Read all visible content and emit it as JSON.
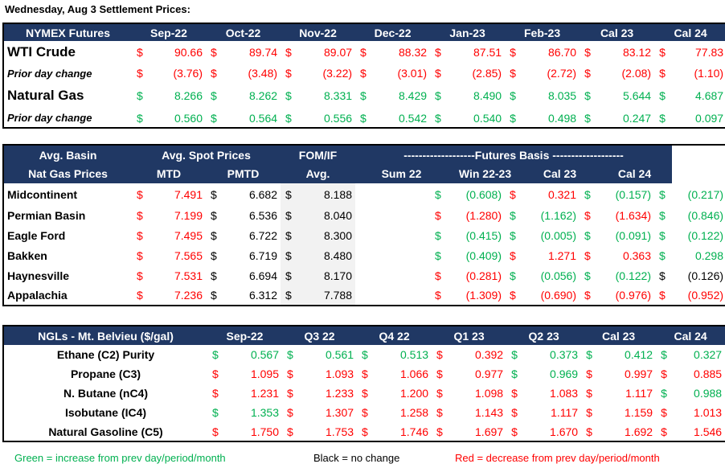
{
  "title": "Wednesday, Aug 3 Settlement Prices:",
  "futures": {
    "header": [
      "NYMEX Futures",
      "Sep-22",
      "Oct-22",
      "Nov-22",
      "Dec-22",
      "Jan-23",
      "Feb-23",
      "Cal 23",
      "Cal 24"
    ],
    "rows": [
      {
        "label": "WTI Crude",
        "style": "big",
        "color": "red",
        "cur": "$",
        "values": [
          "90.66",
          "89.74",
          "89.07",
          "88.32",
          "87.51",
          "86.70",
          "83.12",
          "77.83"
        ]
      },
      {
        "label": "Prior day change",
        "style": "ital",
        "color": "red",
        "cur": "$",
        "values": [
          "(3.76)",
          "(3.48)",
          "(3.22)",
          "(3.01)",
          "(2.85)",
          "(2.72)",
          "(2.08)",
          "(1.10)"
        ]
      },
      {
        "label": "Natural Gas",
        "style": "big",
        "color": "grn",
        "cur": "$",
        "values": [
          "8.266",
          "8.262",
          "8.331",
          "8.429",
          "8.490",
          "8.035",
          "5.644",
          "4.687"
        ]
      },
      {
        "label": "Prior day change",
        "style": "ital",
        "color": "grn",
        "cur": "$",
        "values": [
          "0.560",
          "0.564",
          "0.556",
          "0.542",
          "0.540",
          "0.498",
          "0.247",
          "0.097"
        ]
      }
    ]
  },
  "basin": {
    "header1": {
      "a": "Avg. Basin",
      "b": "Avg. Spot Prices",
      "c": "FOM/IF",
      "d": "-------------------Futures Basis -------------------"
    },
    "header2": {
      "a": "Nat Gas Prices",
      "mtd": "MTD",
      "pmtd": "PMTD",
      "avg": "Avg.",
      "f1": "Sum 22",
      "f2": "Win 22-23",
      "f3": "Cal 23",
      "f4": "Cal 24"
    },
    "rows": [
      {
        "label": "Midcontinent",
        "mtd": "7.491",
        "mtd_c": "red",
        "pmtd": "6.682",
        "avg": "8.188",
        "f": [
          [
            "(0.608)",
            "grn"
          ],
          [
            "0.321",
            "red"
          ],
          [
            "(0.157)",
            "grn"
          ],
          [
            "(0.217)",
            "grn"
          ]
        ]
      },
      {
        "label": "Permian Basin",
        "mtd": "7.199",
        "mtd_c": "red",
        "pmtd": "6.536",
        "avg": "8.040",
        "f": [
          [
            "(1.280)",
            "red"
          ],
          [
            "(1.162)",
            "grn"
          ],
          [
            "(1.634)",
            "red"
          ],
          [
            "(0.846)",
            "grn"
          ]
        ]
      },
      {
        "label": "Eagle Ford",
        "mtd": "7.495",
        "mtd_c": "red",
        "pmtd": "6.722",
        "avg": "8.300",
        "f": [
          [
            "(0.415)",
            "grn"
          ],
          [
            "(0.005)",
            "grn"
          ],
          [
            "(0.091)",
            "grn"
          ],
          [
            "(0.122)",
            "grn"
          ]
        ]
      },
      {
        "label": "Bakken",
        "mtd": "7.565",
        "mtd_c": "red",
        "pmtd": "6.719",
        "avg": "8.480",
        "f": [
          [
            "(0.409)",
            "grn"
          ],
          [
            "1.271",
            "red"
          ],
          [
            "0.363",
            "red"
          ],
          [
            "0.298",
            "grn"
          ]
        ]
      },
      {
        "label": "Haynesville",
        "mtd": "7.531",
        "mtd_c": "red",
        "pmtd": "6.694",
        "avg": "8.170",
        "f": [
          [
            "(0.281)",
            "red"
          ],
          [
            "(0.056)",
            "grn"
          ],
          [
            "(0.122)",
            "grn"
          ],
          [
            "(0.126)",
            "blk"
          ]
        ]
      },
      {
        "label": "Appalachia",
        "mtd": "7.236",
        "mtd_c": "red",
        "pmtd": "6.312",
        "avg": "7.788",
        "f": [
          [
            "(1.309)",
            "red"
          ],
          [
            "(0.690)",
            "red"
          ],
          [
            "(0.976)",
            "red"
          ],
          [
            "(0.952)",
            "red"
          ]
        ]
      }
    ]
  },
  "ngl": {
    "header": [
      "NGLs - Mt. Belvieu ($/gal)",
      "Sep-22",
      "Q3 22",
      "Q4 22",
      "Q1 23",
      "Q2 23",
      "Cal 23",
      "Cal 24"
    ],
    "rows": [
      {
        "label": "Ethane (C2) Purity",
        "v": [
          [
            "0.567",
            "grn"
          ],
          [
            "0.561",
            "grn"
          ],
          [
            "0.513",
            "grn"
          ],
          [
            "0.392",
            "red"
          ],
          [
            "0.373",
            "grn"
          ],
          [
            "0.412",
            "grn"
          ],
          [
            "0.327",
            "grn"
          ]
        ]
      },
      {
        "label": "Propane (C3)",
        "v": [
          [
            "1.095",
            "red"
          ],
          [
            "1.093",
            "red"
          ],
          [
            "1.066",
            "red"
          ],
          [
            "0.977",
            "red"
          ],
          [
            "0.969",
            "grn"
          ],
          [
            "0.997",
            "red"
          ],
          [
            "0.885",
            "red"
          ]
        ]
      },
      {
        "label": "N. Butane (nC4)",
        "v": [
          [
            "1.231",
            "red"
          ],
          [
            "1.233",
            "red"
          ],
          [
            "1.200",
            "red"
          ],
          [
            "1.098",
            "red"
          ],
          [
            "1.083",
            "red"
          ],
          [
            "1.117",
            "red"
          ],
          [
            "0.988",
            "grn"
          ]
        ]
      },
      {
        "label": "Isobutane (IC4)",
        "v": [
          [
            "1.353",
            "grn"
          ],
          [
            "1.307",
            "red"
          ],
          [
            "1.258",
            "red"
          ],
          [
            "1.143",
            "red"
          ],
          [
            "1.117",
            "red"
          ],
          [
            "1.159",
            "red"
          ],
          [
            "1.013",
            "red"
          ]
        ]
      },
      {
        "label": "Natural Gasoline (C5)",
        "v": [
          [
            "1.750",
            "red"
          ],
          [
            "1.753",
            "red"
          ],
          [
            "1.746",
            "red"
          ],
          [
            "1.697",
            "red"
          ],
          [
            "1.670",
            "red"
          ],
          [
            "1.692",
            "red"
          ],
          [
            "1.546",
            "red"
          ]
        ]
      }
    ]
  },
  "legend": {
    "green": "Green = increase from prev day/period/month",
    "black": "Black = no change",
    "red": "Red = decrease from prev day/period/month",
    "green_color": "#00b050",
    "black_color": "#000000",
    "red_color": "#ff0000"
  }
}
